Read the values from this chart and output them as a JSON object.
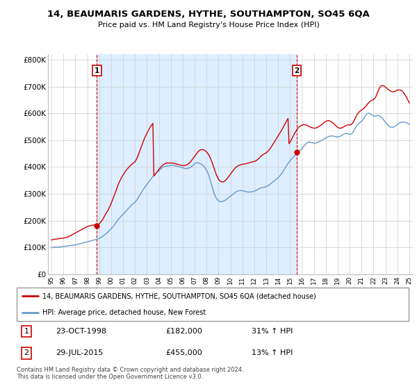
{
  "title": "14, BEAUMARIS GARDENS, HYTHE, SOUTHAMPTON, SO45 6QA",
  "subtitle": "Price paid vs. HM Land Registry's House Price Index (HPI)",
  "legend_line1": "14, BEAUMARIS GARDENS, HYTHE, SOUTHAMPTON, SO45 6QA (detached house)",
  "legend_line2": "HPI: Average price, detached house, New Forest",
  "footnote": "Contains HM Land Registry data © Crown copyright and database right 2024.\nThis data is licensed under the Open Government Licence v3.0.",
  "sale1_label": "1",
  "sale1_date": "23-OCT-1998",
  "sale1_price": "£182,000",
  "sale1_hpi": "31% ↑ HPI",
  "sale1_year": 1998.8,
  "sale1_value": 182000,
  "sale2_label": "2",
  "sale2_date": "29-JUL-2015",
  "sale2_price": "£455,000",
  "sale2_hpi": "13% ↑ HPI",
  "sale2_year": 2015.57,
  "sale2_value": 455000,
  "red_color": "#cc0000",
  "blue_color": "#6699cc",
  "shade_color": "#ddeeff",
  "grid_color": "#cccccc",
  "background_color": "#ffffff",
  "ylim": [
    0,
    820000
  ],
  "xlim": [
    1994.7,
    2025.3
  ],
  "hpi_x": [
    1995.0,
    1995.083,
    1995.167,
    1995.25,
    1995.333,
    1995.417,
    1995.5,
    1995.583,
    1995.667,
    1995.75,
    1995.833,
    1995.917,
    1996.0,
    1996.083,
    1996.167,
    1996.25,
    1996.333,
    1996.417,
    1996.5,
    1996.583,
    1996.667,
    1996.75,
    1996.833,
    1996.917,
    1997.0,
    1997.083,
    1997.167,
    1997.25,
    1997.333,
    1997.417,
    1997.5,
    1997.583,
    1997.667,
    1997.75,
    1997.833,
    1997.917,
    1998.0,
    1998.083,
    1998.167,
    1998.25,
    1998.333,
    1998.417,
    1998.5,
    1998.583,
    1998.667,
    1998.75,
    1998.833,
    1998.917,
    1999.0,
    1999.083,
    1999.167,
    1999.25,
    1999.333,
    1999.417,
    1999.5,
    1999.583,
    1999.667,
    1999.75,
    1999.833,
    1999.917,
    2000.0,
    2000.083,
    2000.167,
    2000.25,
    2000.333,
    2000.417,
    2000.5,
    2000.583,
    2000.667,
    2000.75,
    2000.833,
    2000.917,
    2001.0,
    2001.083,
    2001.167,
    2001.25,
    2001.333,
    2001.417,
    2001.5,
    2001.583,
    2001.667,
    2001.75,
    2001.833,
    2001.917,
    2002.0,
    2002.083,
    2002.167,
    2002.25,
    2002.333,
    2002.417,
    2002.5,
    2002.583,
    2002.667,
    2002.75,
    2002.833,
    2002.917,
    2003.0,
    2003.083,
    2003.167,
    2003.25,
    2003.333,
    2003.417,
    2003.5,
    2003.583,
    2003.667,
    2003.75,
    2003.833,
    2003.917,
    2004.0,
    2004.083,
    2004.167,
    2004.25,
    2004.333,
    2004.417,
    2004.5,
    2004.583,
    2004.667,
    2004.75,
    2004.833,
    2004.917,
    2005.0,
    2005.083,
    2005.167,
    2005.25,
    2005.333,
    2005.417,
    2005.5,
    2005.583,
    2005.667,
    2005.75,
    2005.833,
    2005.917,
    2006.0,
    2006.083,
    2006.167,
    2006.25,
    2006.333,
    2006.417,
    2006.5,
    2006.583,
    2006.667,
    2006.75,
    2006.833,
    2006.917,
    2007.0,
    2007.083,
    2007.167,
    2007.25,
    2007.333,
    2007.417,
    2007.5,
    2007.583,
    2007.667,
    2007.75,
    2007.833,
    2007.917,
    2008.0,
    2008.083,
    2008.167,
    2008.25,
    2008.333,
    2008.417,
    2008.5,
    2008.583,
    2008.667,
    2008.75,
    2008.833,
    2008.917,
    2009.0,
    2009.083,
    2009.167,
    2009.25,
    2009.333,
    2009.417,
    2009.5,
    2009.583,
    2009.667,
    2009.75,
    2009.833,
    2009.917,
    2010.0,
    2010.083,
    2010.167,
    2010.25,
    2010.333,
    2010.417,
    2010.5,
    2010.583,
    2010.667,
    2010.75,
    2010.833,
    2010.917,
    2011.0,
    2011.083,
    2011.167,
    2011.25,
    2011.333,
    2011.417,
    2011.5,
    2011.583,
    2011.667,
    2011.75,
    2011.833,
    2011.917,
    2012.0,
    2012.083,
    2012.167,
    2012.25,
    2012.333,
    2012.417,
    2012.5,
    2012.583,
    2012.667,
    2012.75,
    2012.833,
    2012.917,
    2013.0,
    2013.083,
    2013.167,
    2013.25,
    2013.333,
    2013.417,
    2013.5,
    2013.583,
    2013.667,
    2013.75,
    2013.833,
    2013.917,
    2014.0,
    2014.083,
    2014.167,
    2014.25,
    2014.333,
    2014.417,
    2014.5,
    2014.583,
    2014.667,
    2014.75,
    2014.833,
    2014.917,
    2015.0,
    2015.083,
    2015.167,
    2015.25,
    2015.333,
    2015.417,
    2015.5,
    2015.583,
    2015.667,
    2015.75,
    2015.833,
    2015.917,
    2016.0,
    2016.083,
    2016.167,
    2016.25,
    2016.333,
    2016.417,
    2016.5,
    2016.583,
    2016.667,
    2016.75,
    2016.833,
    2016.917,
    2017.0,
    2017.083,
    2017.167,
    2017.25,
    2017.333,
    2017.417,
    2017.5,
    2017.583,
    2017.667,
    2017.75,
    2017.833,
    2017.917,
    2018.0,
    2018.083,
    2018.167,
    2018.25,
    2018.333,
    2018.417,
    2018.5,
    2018.583,
    2018.667,
    2018.75,
    2018.833,
    2018.917,
    2019.0,
    2019.083,
    2019.167,
    2019.25,
    2019.333,
    2019.417,
    2019.5,
    2019.583,
    2019.667,
    2019.75,
    2019.833,
    2019.917,
    2020.0,
    2020.083,
    2020.167,
    2020.25,
    2020.333,
    2020.417,
    2020.5,
    2020.583,
    2020.667,
    2020.75,
    2020.833,
    2020.917,
    2021.0,
    2021.083,
    2021.167,
    2021.25,
    2021.333,
    2021.417,
    2021.5,
    2021.583,
    2021.667,
    2021.75,
    2021.833,
    2021.917,
    2022.0,
    2022.083,
    2022.167,
    2022.25,
    2022.333,
    2022.417,
    2022.5,
    2022.583,
    2022.667,
    2022.75,
    2022.833,
    2022.917,
    2023.0,
    2023.083,
    2023.167,
    2023.25,
    2023.333,
    2023.417,
    2023.5,
    2023.583,
    2023.667,
    2023.75,
    2023.833,
    2023.917,
    2024.0,
    2024.083,
    2024.167,
    2024.25,
    2024.333,
    2024.417,
    2024.5,
    2024.583,
    2024.667,
    2024.75,
    2024.833,
    2024.917,
    2025.0
  ],
  "hpi_y": [
    99000,
    100000,
    100500,
    101000,
    101500,
    101000,
    100500,
    101000,
    101500,
    102000,
    102500,
    103000,
    103500,
    104000,
    104500,
    105000,
    105500,
    106000,
    106500,
    107000,
    107500,
    108000,
    108500,
    109000,
    109500,
    110000,
    111000,
    112000,
    113000,
    114000,
    115000,
    116000,
    117000,
    118000,
    119000,
    120000,
    121000,
    122000,
    123000,
    124000,
    125000,
    126000,
    127000,
    128000,
    129000,
    130000,
    131000,
    132000,
    134000,
    136000,
    138000,
    140000,
    143000,
    146000,
    149000,
    152000,
    155000,
    158000,
    162000,
    166000,
    170000,
    174000,
    178000,
    183000,
    188000,
    193000,
    198000,
    204000,
    208000,
    212000,
    216000,
    220000,
    224000,
    228000,
    232000,
    236000,
    240000,
    244000,
    248000,
    252000,
    256000,
    260000,
    263000,
    266000,
    269000,
    273000,
    278000,
    284000,
    290000,
    296000,
    302000,
    308000,
    315000,
    320000,
    325000,
    330000,
    335000,
    340000,
    345000,
    350000,
    355000,
    360000,
    364000,
    368000,
    372000,
    376000,
    380000,
    383000,
    386000,
    390000,
    393000,
    396000,
    399000,
    401000,
    402000,
    403000,
    403500,
    404000,
    404500,
    405000,
    405500,
    406000,
    406500,
    406000,
    405000,
    404000,
    403000,
    402000,
    401000,
    400000,
    399000,
    398000,
    397000,
    396000,
    395000,
    394000,
    394000,
    395000,
    396000,
    397000,
    399000,
    402000,
    405000,
    408000,
    412000,
    415000,
    416000,
    416000,
    415000,
    414000,
    412000,
    410000,
    408000,
    405000,
    400000,
    394000,
    388000,
    381000,
    372000,
    360000,
    347000,
    334000,
    320000,
    308000,
    298000,
    290000,
    283000,
    278000,
    274000,
    272000,
    271000,
    271000,
    272000,
    273000,
    275000,
    277000,
    279000,
    282000,
    285000,
    288000,
    291000,
    294000,
    297000,
    300000,
    303000,
    306000,
    308000,
    310000,
    311000,
    312000,
    312000,
    312000,
    312000,
    311000,
    310000,
    309000,
    308000,
    307000,
    307000,
    307000,
    307000,
    307000,
    308000,
    309000,
    310000,
    311000,
    313000,
    315000,
    317000,
    319000,
    321000,
    322000,
    323000,
    324000,
    325000,
    326000,
    327000,
    329000,
    331000,
    333000,
    336000,
    339000,
    342000,
    345000,
    348000,
    351000,
    354000,
    357000,
    360000,
    364000,
    368000,
    373000,
    378000,
    384000,
    390000,
    396000,
    402000,
    408000,
    413000,
    418000,
    423000,
    428000,
    432000,
    436000,
    440000,
    443000,
    446000,
    450000,
    454000,
    458000,
    462000,
    465000,
    469000,
    474000,
    478000,
    483000,
    487000,
    490000,
    492000,
    493000,
    493000,
    492000,
    491000,
    490000,
    489000,
    489000,
    490000,
    491000,
    492000,
    494000,
    496000,
    498000,
    500000,
    502000,
    504000,
    506000,
    508000,
    510000,
    512000,
    514000,
    515000,
    516000,
    516000,
    516000,
    515000,
    514000,
    513000,
    512000,
    512000,
    513000,
    514000,
    516000,
    518000,
    520000,
    522000,
    524000,
    525000,
    525000,
    524000,
    523000,
    522000,
    522000,
    524000,
    528000,
    534000,
    541000,
    548000,
    554000,
    558000,
    562000,
    565000,
    568000,
    571000,
    575000,
    580000,
    586000,
    592000,
    597000,
    600000,
    601000,
    600000,
    598000,
    595000,
    593000,
    591000,
    590000,
    590000,
    591000,
    592000,
    592000,
    591000,
    589000,
    586000,
    582000,
    577000,
    572000,
    567000,
    562000,
    558000,
    554000,
    551000,
    549000,
    548000,
    548000,
    549000,
    550000,
    553000,
    556000,
    559000,
    562000,
    564000,
    566000,
    567000,
    568000,
    568000,
    568000,
    567000,
    566000,
    564000,
    562000,
    560000
  ],
  "red_x": [
    1995.0,
    1995.083,
    1995.167,
    1995.25,
    1995.333,
    1995.417,
    1995.5,
    1995.583,
    1995.667,
    1995.75,
    1995.833,
    1995.917,
    1996.0,
    1996.083,
    1996.167,
    1996.25,
    1996.333,
    1996.417,
    1996.5,
    1996.583,
    1996.667,
    1996.75,
    1996.833,
    1996.917,
    1997.0,
    1997.083,
    1997.167,
    1997.25,
    1997.333,
    1997.417,
    1997.5,
    1997.583,
    1997.667,
    1997.75,
    1997.833,
    1997.917,
    1998.0,
    1998.083,
    1998.167,
    1998.25,
    1998.333,
    1998.417,
    1998.5,
    1998.583,
    1998.667,
    1998.75,
    1998.833,
    1998.917,
    1999.0,
    1999.083,
    1999.167,
    1999.25,
    1999.333,
    1999.417,
    1999.5,
    1999.583,
    1999.667,
    1999.75,
    1999.833,
    1999.917,
    2000.0,
    2000.083,
    2000.167,
    2000.25,
    2000.333,
    2000.417,
    2000.5,
    2000.583,
    2000.667,
    2000.75,
    2000.833,
    2000.917,
    2001.0,
    2001.083,
    2001.167,
    2001.25,
    2001.333,
    2001.417,
    2001.5,
    2001.583,
    2001.667,
    2001.75,
    2001.833,
    2001.917,
    2002.0,
    2002.083,
    2002.167,
    2002.25,
    2002.333,
    2002.417,
    2002.5,
    2002.583,
    2002.667,
    2002.75,
    2002.833,
    2002.917,
    2003.0,
    2003.083,
    2003.167,
    2003.25,
    2003.333,
    2003.417,
    2003.5,
    2003.583,
    2003.667,
    2003.75,
    2003.833,
    2003.917,
    2004.0,
    2004.083,
    2004.167,
    2004.25,
    2004.333,
    2004.417,
    2004.5,
    2004.583,
    2004.667,
    2004.75,
    2004.833,
    2004.917,
    2005.0,
    2005.083,
    2005.167,
    2005.25,
    2005.333,
    2005.417,
    2005.5,
    2005.583,
    2005.667,
    2005.75,
    2005.833,
    2005.917,
    2006.0,
    2006.083,
    2006.167,
    2006.25,
    2006.333,
    2006.417,
    2006.5,
    2006.583,
    2006.667,
    2006.75,
    2006.833,
    2006.917,
    2007.0,
    2007.083,
    2007.167,
    2007.25,
    2007.333,
    2007.417,
    2007.5,
    2007.583,
    2007.667,
    2007.75,
    2007.833,
    2007.917,
    2008.0,
    2008.083,
    2008.167,
    2008.25,
    2008.333,
    2008.417,
    2008.5,
    2008.583,
    2008.667,
    2008.75,
    2008.833,
    2008.917,
    2009.0,
    2009.083,
    2009.167,
    2009.25,
    2009.333,
    2009.417,
    2009.5,
    2009.583,
    2009.667,
    2009.75,
    2009.833,
    2009.917,
    2010.0,
    2010.083,
    2010.167,
    2010.25,
    2010.333,
    2010.417,
    2010.5,
    2010.583,
    2010.667,
    2010.75,
    2010.833,
    2010.917,
    2011.0,
    2011.083,
    2011.167,
    2011.25,
    2011.333,
    2011.417,
    2011.5,
    2011.583,
    2011.667,
    2011.75,
    2011.833,
    2011.917,
    2012.0,
    2012.083,
    2012.167,
    2012.25,
    2012.333,
    2012.417,
    2012.5,
    2012.583,
    2012.667,
    2012.75,
    2012.833,
    2012.917,
    2013.0,
    2013.083,
    2013.167,
    2013.25,
    2013.333,
    2013.417,
    2013.5,
    2013.583,
    2013.667,
    2013.75,
    2013.833,
    2013.917,
    2014.0,
    2014.083,
    2014.167,
    2014.25,
    2014.333,
    2014.417,
    2014.5,
    2014.583,
    2014.667,
    2014.75,
    2014.833,
    2014.917,
    2015.0,
    2015.083,
    2015.167,
    2015.25,
    2015.333,
    2015.417,
    2015.5,
    2015.583,
    2015.667,
    2015.75,
    2015.833,
    2015.917,
    2016.0,
    2016.083,
    2016.167,
    2016.25,
    2016.333,
    2016.417,
    2016.5,
    2016.583,
    2016.667,
    2016.75,
    2016.833,
    2016.917,
    2017.0,
    2017.083,
    2017.167,
    2017.25,
    2017.333,
    2017.417,
    2017.5,
    2017.583,
    2017.667,
    2017.75,
    2017.833,
    2017.917,
    2018.0,
    2018.083,
    2018.167,
    2018.25,
    2018.333,
    2018.417,
    2018.5,
    2018.583,
    2018.667,
    2018.75,
    2018.833,
    2018.917,
    2019.0,
    2019.083,
    2019.167,
    2019.25,
    2019.333,
    2019.417,
    2019.5,
    2019.583,
    2019.667,
    2019.75,
    2019.833,
    2019.917,
    2020.0,
    2020.083,
    2020.167,
    2020.25,
    2020.333,
    2020.417,
    2020.5,
    2020.583,
    2020.667,
    2020.75,
    2020.833,
    2020.917,
    2021.0,
    2021.083,
    2021.167,
    2021.25,
    2021.333,
    2021.417,
    2021.5,
    2021.583,
    2021.667,
    2021.75,
    2021.833,
    2021.917,
    2022.0,
    2022.083,
    2022.167,
    2022.25,
    2022.333,
    2022.417,
    2022.5,
    2022.583,
    2022.667,
    2022.75,
    2022.833,
    2022.917,
    2023.0,
    2023.083,
    2023.167,
    2023.25,
    2023.333,
    2023.417,
    2023.5,
    2023.583,
    2023.667,
    2023.75,
    2023.833,
    2023.917,
    2024.0,
    2024.083,
    2024.167,
    2024.25,
    2024.333,
    2024.417,
    2024.5,
    2024.583,
    2024.667,
    2024.75,
    2024.833,
    2024.917,
    2025.0
  ],
  "red_y": [
    128000,
    129000,
    130000,
    130500,
    131000,
    131500,
    132000,
    132500,
    133000,
    133500,
    134000,
    134500,
    135000,
    136000,
    137000,
    138000,
    139000,
    140000,
    142000,
    144000,
    146000,
    148000,
    150000,
    152000,
    154000,
    156000,
    158000,
    160000,
    162000,
    164000,
    166000,
    168000,
    170000,
    172000,
    174000,
    176000,
    178000,
    179000,
    180000,
    181000,
    182000,
    183000,
    183500,
    184000,
    184500,
    185000,
    185500,
    186000,
    188000,
    192000,
    197000,
    202000,
    208000,
    215000,
    222000,
    228000,
    234000,
    240000,
    248000,
    256000,
    265000,
    274000,
    283000,
    293000,
    303000,
    313000,
    323000,
    334000,
    342000,
    350000,
    357000,
    364000,
    370000,
    376000,
    382000,
    387000,
    392000,
    396000,
    400000,
    404000,
    408000,
    411000,
    414000,
    417000,
    420000,
    426000,
    433000,
    442000,
    452000,
    462000,
    472000,
    482000,
    492000,
    502000,
    511000,
    519000,
    526000,
    533000,
    540000,
    547000,
    553000,
    558000,
    563000,
    367000,
    371000,
    376000,
    381000,
    386000,
    391000,
    396000,
    400000,
    404000,
    407000,
    410000,
    412000,
    414000,
    415000,
    415000,
    415000,
    415000,
    415000,
    415000,
    415000,
    414000,
    413000,
    412000,
    411000,
    410000,
    409000,
    408000,
    407000,
    406000,
    405000,
    405000,
    406000,
    407000,
    408000,
    410000,
    413000,
    416000,
    420000,
    425000,
    430000,
    435000,
    440000,
    445000,
    450000,
    455000,
    459000,
    462000,
    464000,
    465000,
    465000,
    464000,
    462000,
    460000,
    456000,
    452000,
    447000,
    440000,
    432000,
    423000,
    413000,
    402000,
    391000,
    380000,
    370000,
    362000,
    355000,
    350000,
    347000,
    345000,
    344000,
    345000,
    347000,
    350000,
    354000,
    358000,
    363000,
    368000,
    373000,
    378000,
    383000,
    388000,
    393000,
    397000,
    400000,
    403000,
    405000,
    407000,
    408000,
    409000,
    410000,
    411000,
    411000,
    412000,
    413000,
    414000,
    415000,
    416000,
    417000,
    418000,
    419000,
    420000,
    421000,
    422000,
    424000,
    427000,
    430000,
    433000,
    437000,
    441000,
    444000,
    447000,
    449000,
    451000,
    453000,
    456000,
    460000,
    464000,
    469000,
    474000,
    480000,
    486000,
    492000,
    498000,
    504000,
    510000,
    516000,
    522000,
    528000,
    534000,
    540000,
    547000,
    554000,
    561000,
    568000,
    575000,
    581000,
    487000,
    493000,
    500000,
    507000,
    514000,
    521000,
    528000,
    534000,
    540000,
    545000,
    549000,
    552000,
    554000,
    556000,
    558000,
    558000,
    558000,
    557000,
    556000,
    554000,
    552000,
    550000,
    548000,
    547000,
    546000,
    545000,
    545000,
    546000,
    547000,
    549000,
    551000,
    553000,
    556000,
    559000,
    562000,
    565000,
    568000,
    570000,
    572000,
    573000,
    573000,
    572000,
    570000,
    568000,
    565000,
    562000,
    558000,
    554000,
    551000,
    548000,
    546000,
    545000,
    545000,
    546000,
    548000,
    550000,
    552000,
    554000,
    556000,
    557000,
    557000,
    557000,
    558000,
    560000,
    564000,
    570000,
    577000,
    585000,
    592000,
    598000,
    603000,
    607000,
    610000,
    612000,
    615000,
    618000,
    622000,
    626000,
    630000,
    635000,
    639000,
    643000,
    646000,
    648000,
    650000,
    652000,
    655000,
    660000,
    668000,
    677000,
    686000,
    694000,
    700000,
    703000,
    704000,
    703000,
    701000,
    698000,
    695000,
    692000,
    689000,
    686000,
    684000,
    682000,
    681000,
    681000,
    682000,
    683000,
    685000,
    687000,
    688000,
    688000,
    687000,
    686000,
    683000,
    679000,
    674000,
    668000,
    661000,
    654000,
    647000,
    640000
  ]
}
